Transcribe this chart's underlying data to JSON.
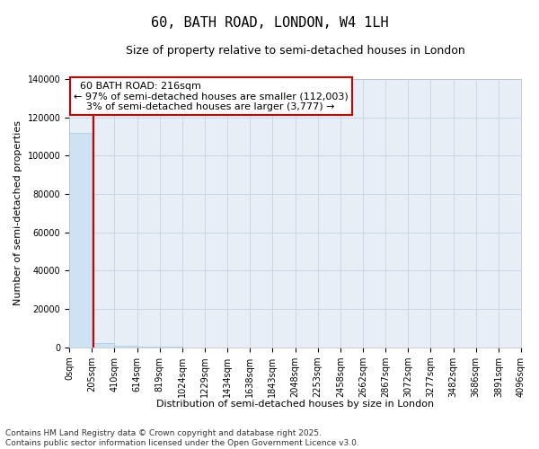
{
  "title": "60, BATH ROAD, LONDON, W4 1LH",
  "subtitle": "Size of property relative to semi-detached houses in London",
  "xlabel": "Distribution of semi-detached houses by size in London",
  "ylabel": "Number of semi-detached properties",
  "property_size": 216,
  "annotation_text": "  60 BATH ROAD: 216sqm\n← 97% of semi-detached houses are smaller (112,003)\n    3% of semi-detached houses are larger (3,777) →",
  "bar_color": "#cfe2f3",
  "bar_edge_color": "#a8c8e8",
  "marker_color": "#cc0000",
  "background_color": "#ffffff",
  "plot_bg_color": "#e8eef5",
  "grid_color": "#c8d8e8",
  "bin_edges": [
    0,
    205,
    410,
    614,
    819,
    1024,
    1229,
    1434,
    1638,
    1843,
    2048,
    2253,
    2458,
    2662,
    2867,
    3072,
    3277,
    3482,
    3686,
    3891,
    4096
  ],
  "bin_labels": [
    "0sqm",
    "205sqm",
    "410sqm",
    "614sqm",
    "819sqm",
    "1024sqm",
    "1229sqm",
    "1434sqm",
    "1638sqm",
    "1843sqm",
    "2048sqm",
    "2253sqm",
    "2458sqm",
    "2662sqm",
    "2867sqm",
    "3072sqm",
    "3277sqm",
    "3482sqm",
    "3686sqm",
    "3891sqm",
    "4096sqm"
  ],
  "bin_values": [
    112003,
    2200,
    650,
    280,
    180,
    130,
    100,
    80,
    65,
    55,
    48,
    42,
    37,
    33,
    29,
    26,
    23,
    20,
    18,
    16
  ],
  "ylim": [
    0,
    140000
  ],
  "yticks": [
    0,
    20000,
    40000,
    60000,
    80000,
    100000,
    120000,
    140000
  ],
  "footnote": "Contains HM Land Registry data © Crown copyright and database right 2025.\nContains public sector information licensed under the Open Government Licence v3.0.",
  "title_fontsize": 11,
  "subtitle_fontsize": 9,
  "axis_fontsize": 8,
  "tick_fontsize": 7,
  "annot_fontsize": 8,
  "footnote_fontsize": 6.5
}
